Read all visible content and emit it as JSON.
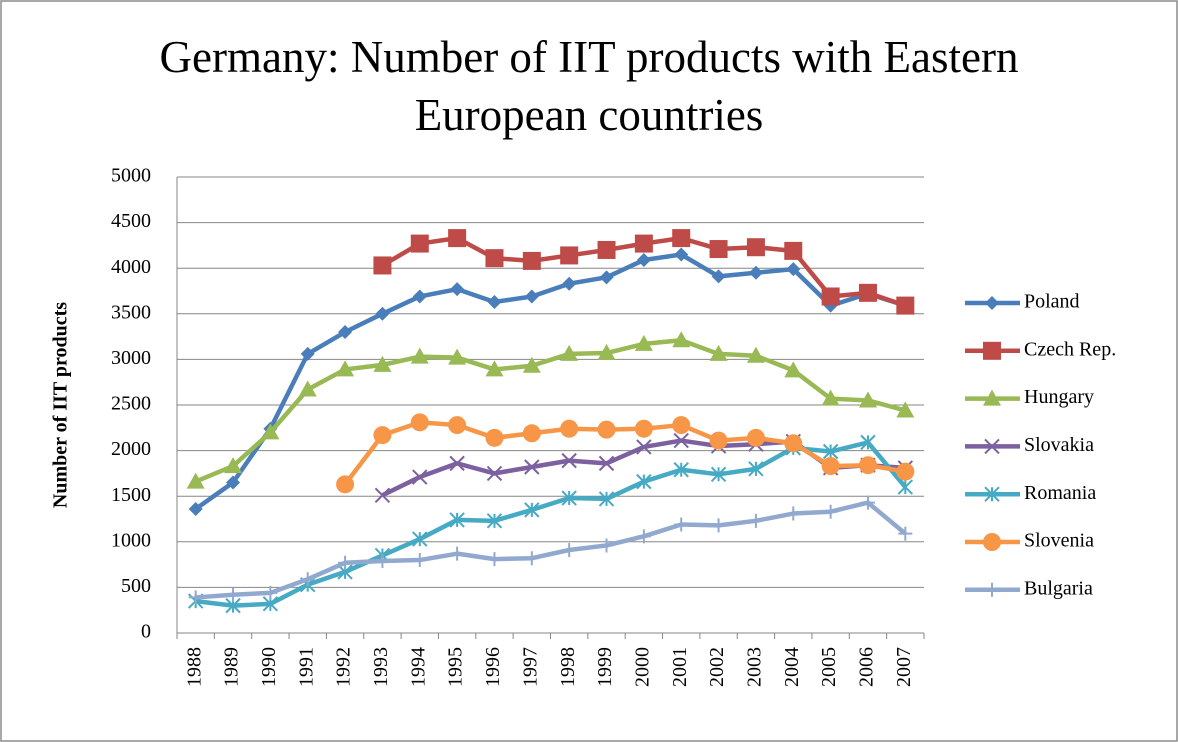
{
  "chart_data": {
    "type": "line",
    "title": "Germany: Number of IIT products with Eastern European countries",
    "y_label": "Number of IIT products",
    "categories": [
      "1988",
      "1989",
      "1990",
      "1991",
      "1992",
      "1993",
      "1994",
      "1995",
      "1996",
      "1997",
      "1998",
      "1999",
      "2000",
      "2001",
      "2002",
      "2003",
      "2004",
      "2005",
      "2006",
      "2007"
    ],
    "ylim": [
      0,
      5000
    ],
    "yticks": [
      0,
      500,
      1000,
      1500,
      2000,
      2500,
      3000,
      3500,
      4000,
      4500,
      5000
    ],
    "grid": true,
    "legend": "right",
    "series": [
      {
        "name": "Poland",
        "color": "#4a7ebb",
        "marker": "diamond",
        "values": [
          1360,
          1650,
          2240,
          3060,
          3300,
          3500,
          3690,
          3770,
          3630,
          3690,
          3830,
          3900,
          4090,
          4150,
          3910,
          3950,
          3990,
          3590,
          3720,
          3590
        ]
      },
      {
        "name": "Czech Rep.",
        "color": "#be4b48",
        "marker": "square",
        "values": [
          null,
          null,
          null,
          null,
          null,
          4030,
          4270,
          4330,
          4110,
          4080,
          4140,
          4200,
          4270,
          4330,
          4210,
          4230,
          4190,
          3690,
          3730,
          3590
        ]
      },
      {
        "name": "Hungary",
        "color": "#98b954",
        "marker": "triangle",
        "values": [
          1660,
          1830,
          2200,
          2670,
          2890,
          2940,
          3030,
          3020,
          2890,
          2930,
          3060,
          3070,
          3170,
          3210,
          3060,
          3040,
          2880,
          2570,
          2550,
          2440
        ]
      },
      {
        "name": "Slovakia",
        "color": "#7d60a0",
        "marker": "x",
        "values": [
          null,
          null,
          null,
          null,
          null,
          1510,
          1710,
          1860,
          1750,
          1820,
          1890,
          1860,
          2040,
          2110,
          2050,
          2070,
          2100,
          1810,
          1840,
          1810
        ]
      },
      {
        "name": "Romania",
        "color": "#46aac5",
        "marker": "star",
        "values": [
          350,
          300,
          320,
          530,
          670,
          850,
          1030,
          1240,
          1230,
          1350,
          1480,
          1470,
          1660,
          1790,
          1740,
          1800,
          2030,
          1990,
          2090,
          1600
        ]
      },
      {
        "name": "Slovenia",
        "color": "#f79646",
        "marker": "circle",
        "values": [
          null,
          null,
          null,
          null,
          1630,
          2170,
          2310,
          2280,
          2140,
          2190,
          2240,
          2230,
          2240,
          2280,
          2110,
          2140,
          2080,
          1830,
          1840,
          1770
        ]
      },
      {
        "name": "Bulgaria",
        "color": "#92a9cf",
        "marker": "plus",
        "values": [
          390,
          420,
          440,
          590,
          770,
          790,
          800,
          870,
          810,
          820,
          910,
          960,
          1060,
          1190,
          1180,
          1230,
          1310,
          1330,
          1430,
          1090
        ]
      }
    ]
  }
}
